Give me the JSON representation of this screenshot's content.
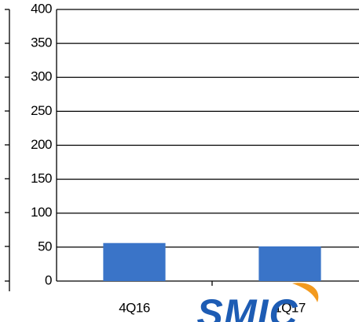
{
  "chart_data": {
    "type": "bar",
    "categories": [
      "4Q16",
      "1Q17"
    ],
    "values": [
      56,
      51
    ],
    "color": "#3a74c8",
    "ylim": [
      0,
      400
    ],
    "yticks": [
      0,
      50,
      100,
      150,
      200,
      250,
      300,
      350,
      400
    ],
    "grid": true,
    "watermark": "SMIC"
  }
}
